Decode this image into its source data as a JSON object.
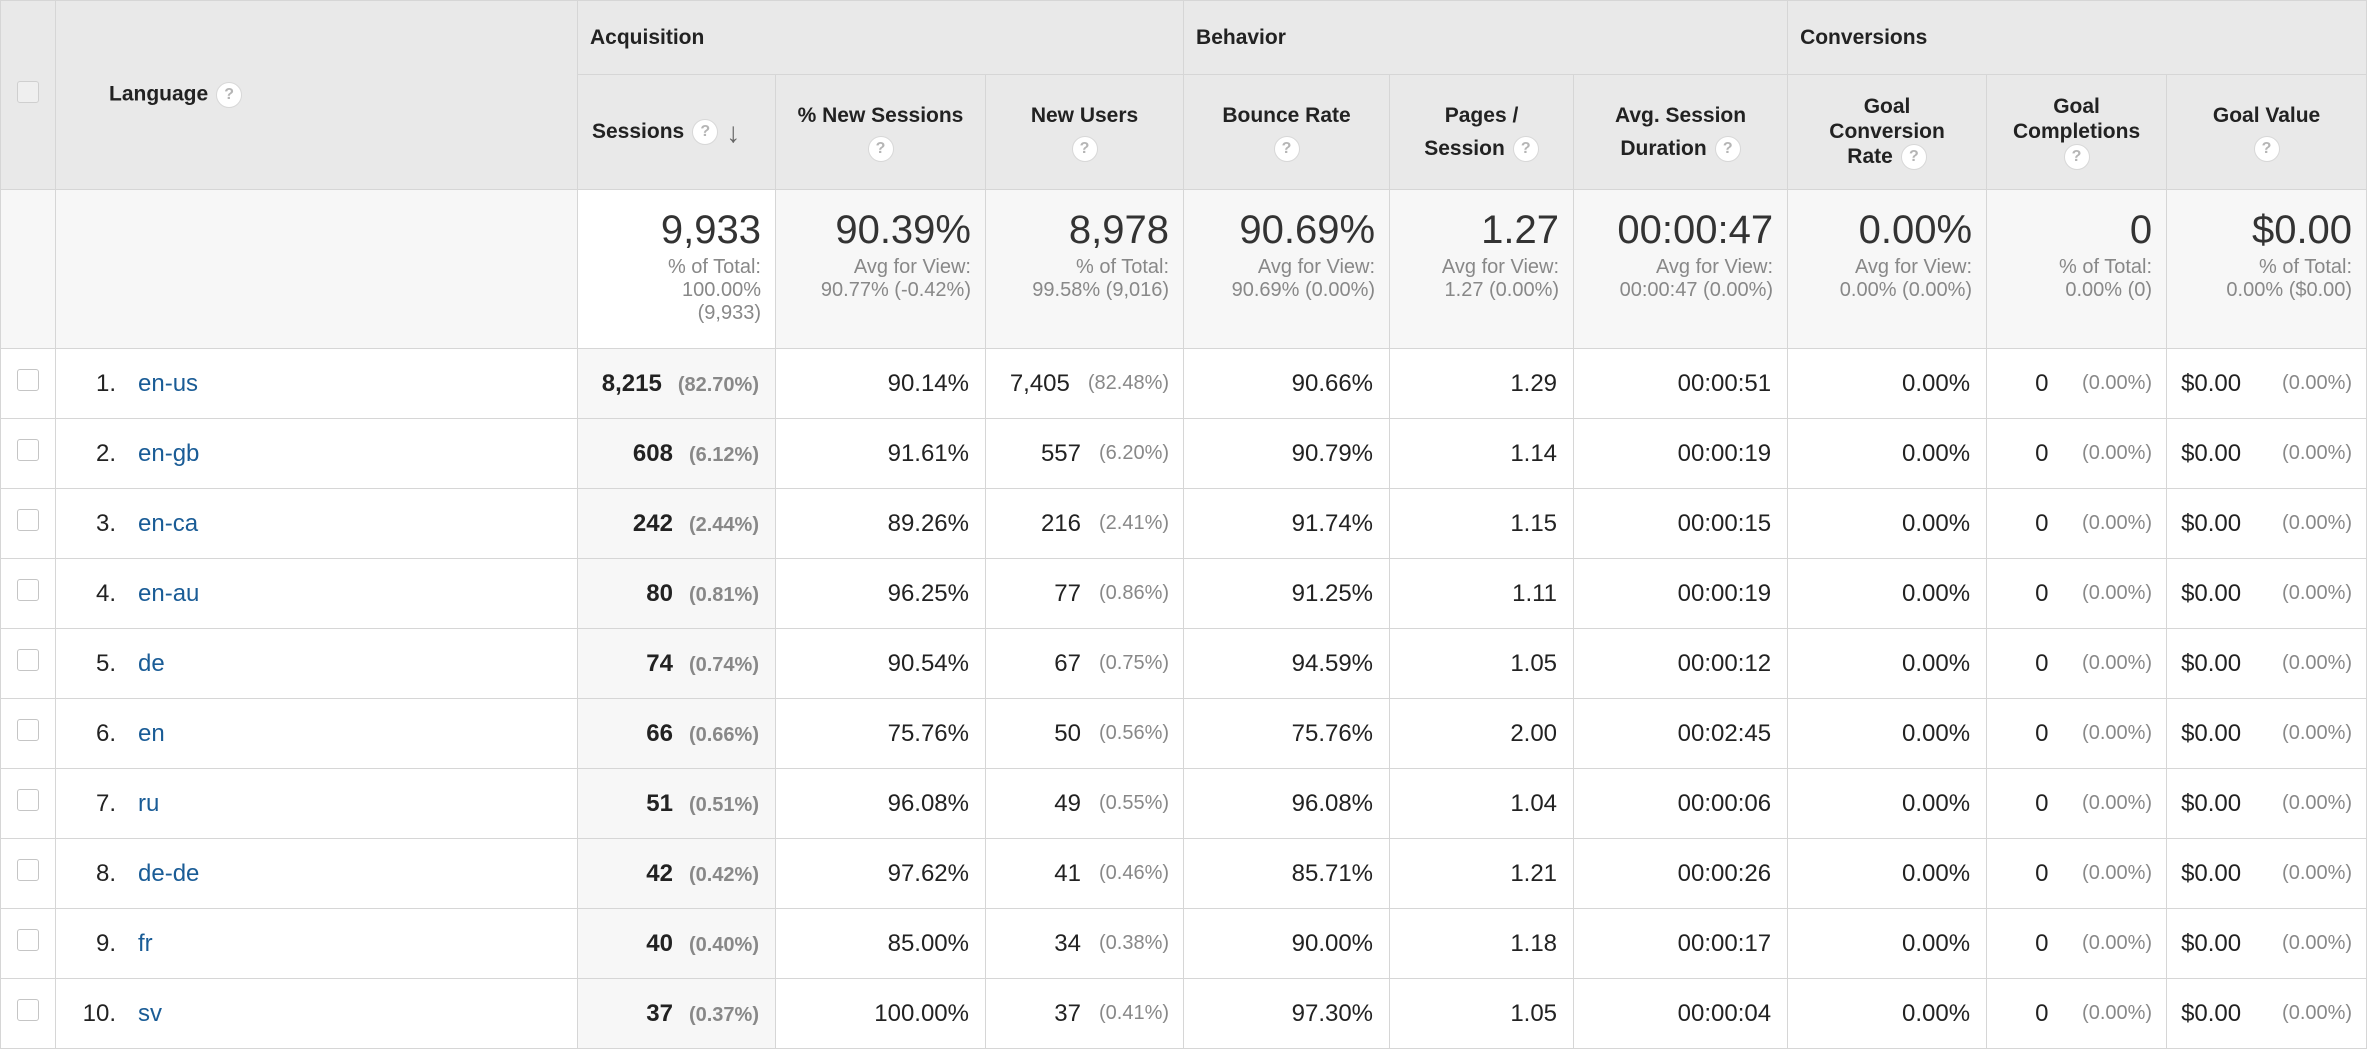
{
  "headers": {
    "language": "Language",
    "help_glyph": "?",
    "groups": {
      "acquisition": "Acquisition",
      "behavior": "Behavior",
      "conversions": "Conversions"
    },
    "metrics": {
      "sessions": "Sessions",
      "new_sessions_pct": "% New Sessions",
      "new_users": "New Users",
      "bounce_rate": "Bounce Rate",
      "pages_per_session_l1": "Pages /",
      "pages_per_session_l2": "Session",
      "avg_session_duration_l1": "Avg. Session",
      "avg_session_duration_l2": "Duration",
      "goal_conversion_rate_l1": "Goal",
      "goal_conversion_rate_l2": "Conversion",
      "goal_conversion_rate_l3": "Rate",
      "goal_completions_l1": "Goal",
      "goal_completions_l2": "Completions",
      "goal_value": "Goal Value"
    },
    "sort_icon": "sort-descending-icon"
  },
  "totals": {
    "sessions": {
      "value": "9,933",
      "sub1": "% of Total:",
      "sub2": "100.00%",
      "sub3": "(9,933)"
    },
    "new_sessions_pct": {
      "value": "90.39%",
      "sub1": "Avg for View:",
      "sub2": "90.77% (-0.42%)"
    },
    "new_users": {
      "value": "8,978",
      "sub1": "% of Total:",
      "sub2": "99.58% (9,016)"
    },
    "bounce_rate": {
      "value": "90.69%",
      "sub1": "Avg for View:",
      "sub2": "90.69% (0.00%)"
    },
    "pages_per_session": {
      "value": "1.27",
      "sub1": "Avg for View:",
      "sub2": "1.27 (0.00%)"
    },
    "avg_session_duration": {
      "value": "00:00:47",
      "sub1": "Avg for View:",
      "sub2": "00:00:47 (0.00%)"
    },
    "goal_conversion_rate": {
      "value": "0.00%",
      "sub1": "Avg for View:",
      "sub2": "0.00% (0.00%)"
    },
    "goal_completions": {
      "value": "0",
      "sub1": "% of Total:",
      "sub2": "0.00% (0)"
    },
    "goal_value": {
      "value": "$0.00",
      "sub1": "% of Total:",
      "sub2": "0.00% ($0.00)"
    }
  },
  "rows": [
    {
      "rank": "1.",
      "language": "en-us",
      "sessions": "8,215",
      "sessions_pct": "(82.70%)",
      "new_sessions_pct": "90.14%",
      "new_users": "7,405",
      "new_users_pct": "(82.48%)",
      "bounce_rate": "90.66%",
      "pages_per_session": "1.29",
      "avg_session_duration": "00:00:51",
      "goal_conversion_rate": "0.00%",
      "goal_completions": "0",
      "goal_completions_pct": "(0.00%)",
      "goal_value": "$0.00",
      "goal_value_pct": "(0.00%)"
    },
    {
      "rank": "2.",
      "language": "en-gb",
      "sessions": "608",
      "sessions_pct": "(6.12%)",
      "new_sessions_pct": "91.61%",
      "new_users": "557",
      "new_users_pct": "(6.20%)",
      "bounce_rate": "90.79%",
      "pages_per_session": "1.14",
      "avg_session_duration": "00:00:19",
      "goal_conversion_rate": "0.00%",
      "goal_completions": "0",
      "goal_completions_pct": "(0.00%)",
      "goal_value": "$0.00",
      "goal_value_pct": "(0.00%)"
    },
    {
      "rank": "3.",
      "language": "en-ca",
      "sessions": "242",
      "sessions_pct": "(2.44%)",
      "new_sessions_pct": "89.26%",
      "new_users": "216",
      "new_users_pct": "(2.41%)",
      "bounce_rate": "91.74%",
      "pages_per_session": "1.15",
      "avg_session_duration": "00:00:15",
      "goal_conversion_rate": "0.00%",
      "goal_completions": "0",
      "goal_completions_pct": "(0.00%)",
      "goal_value": "$0.00",
      "goal_value_pct": "(0.00%)"
    },
    {
      "rank": "4.",
      "language": "en-au",
      "sessions": "80",
      "sessions_pct": "(0.81%)",
      "new_sessions_pct": "96.25%",
      "new_users": "77",
      "new_users_pct": "(0.86%)",
      "bounce_rate": "91.25%",
      "pages_per_session": "1.11",
      "avg_session_duration": "00:00:19",
      "goal_conversion_rate": "0.00%",
      "goal_completions": "0",
      "goal_completions_pct": "(0.00%)",
      "goal_value": "$0.00",
      "goal_value_pct": "(0.00%)"
    },
    {
      "rank": "5.",
      "language": "de",
      "sessions": "74",
      "sessions_pct": "(0.74%)",
      "new_sessions_pct": "90.54%",
      "new_users": "67",
      "new_users_pct": "(0.75%)",
      "bounce_rate": "94.59%",
      "pages_per_session": "1.05",
      "avg_session_duration": "00:00:12",
      "goal_conversion_rate": "0.00%",
      "goal_completions": "0",
      "goal_completions_pct": "(0.00%)",
      "goal_value": "$0.00",
      "goal_value_pct": "(0.00%)"
    },
    {
      "rank": "6.",
      "language": "en",
      "sessions": "66",
      "sessions_pct": "(0.66%)",
      "new_sessions_pct": "75.76%",
      "new_users": "50",
      "new_users_pct": "(0.56%)",
      "bounce_rate": "75.76%",
      "pages_per_session": "2.00",
      "avg_session_duration": "00:02:45",
      "goal_conversion_rate": "0.00%",
      "goal_completions": "0",
      "goal_completions_pct": "(0.00%)",
      "goal_value": "$0.00",
      "goal_value_pct": "(0.00%)"
    },
    {
      "rank": "7.",
      "language": "ru",
      "sessions": "51",
      "sessions_pct": "(0.51%)",
      "new_sessions_pct": "96.08%",
      "new_users": "49",
      "new_users_pct": "(0.55%)",
      "bounce_rate": "96.08%",
      "pages_per_session": "1.04",
      "avg_session_duration": "00:00:06",
      "goal_conversion_rate": "0.00%",
      "goal_completions": "0",
      "goal_completions_pct": "(0.00%)",
      "goal_value": "$0.00",
      "goal_value_pct": "(0.00%)"
    },
    {
      "rank": "8.",
      "language": "de-de",
      "sessions": "42",
      "sessions_pct": "(0.42%)",
      "new_sessions_pct": "97.62%",
      "new_users": "41",
      "new_users_pct": "(0.46%)",
      "bounce_rate": "85.71%",
      "pages_per_session": "1.21",
      "avg_session_duration": "00:00:26",
      "goal_conversion_rate": "0.00%",
      "goal_completions": "0",
      "goal_completions_pct": "(0.00%)",
      "goal_value": "$0.00",
      "goal_value_pct": "(0.00%)"
    },
    {
      "rank": "9.",
      "language": "fr",
      "sessions": "40",
      "sessions_pct": "(0.40%)",
      "new_sessions_pct": "85.00%",
      "new_users": "34",
      "new_users_pct": "(0.38%)",
      "bounce_rate": "90.00%",
      "pages_per_session": "1.18",
      "avg_session_duration": "00:00:17",
      "goal_conversion_rate": "0.00%",
      "goal_completions": "0",
      "goal_completions_pct": "(0.00%)",
      "goal_value": "$0.00",
      "goal_value_pct": "(0.00%)"
    },
    {
      "rank": "10.",
      "language": "sv",
      "sessions": "37",
      "sessions_pct": "(0.37%)",
      "new_sessions_pct": "100.00%",
      "new_users": "37",
      "new_users_pct": "(0.41%)",
      "bounce_rate": "97.30%",
      "pages_per_session": "1.05",
      "avg_session_duration": "00:00:04",
      "goal_conversion_rate": "0.00%",
      "goal_completions": "0",
      "goal_completions_pct": "(0.00%)",
      "goal_value": "$0.00",
      "goal_value_pct": "(0.00%)"
    }
  ]
}
